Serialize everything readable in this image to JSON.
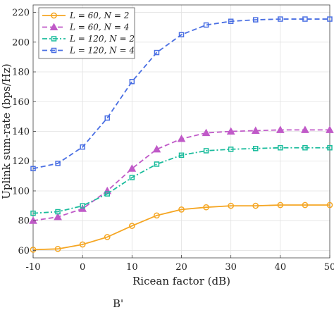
{
  "chart_data": {
    "type": "line",
    "xlabel": "Ricean factor (dB)",
    "ylabel": "Uplink sum-rate (bps/Hz)",
    "xlim": [
      -10,
      50
    ],
    "ylim": [
      55,
      225
    ],
    "xticks": [
      -10,
      0,
      10,
      20,
      30,
      40,
      50
    ],
    "yticks": [
      60,
      80,
      100,
      120,
      140,
      160,
      180,
      200,
      220
    ],
    "grid": true,
    "legend_position": "top-left",
    "x": [
      -10,
      -5,
      0,
      5,
      10,
      15,
      20,
      25,
      30,
      35,
      40,
      45,
      50
    ],
    "series": [
      {
        "name": "L = 60, N = 2",
        "color": "#f5a623",
        "marker": "circle",
        "linestyle": "solid",
        "values": [
          60.5,
          61,
          64,
          69,
          76.5,
          83.5,
          87.5,
          89,
          90,
          90,
          90.5,
          90.5,
          90.5
        ]
      },
      {
        "name": "L = 60, N = 4",
        "color": "#c05ac8",
        "marker": "triangle",
        "linestyle": "dashed",
        "values": [
          80,
          82.5,
          88,
          100,
          115,
          128,
          135,
          139,
          140,
          140.5,
          141,
          141,
          141
        ]
      },
      {
        "name": "L = 120, N = 2",
        "color": "#1abc9c",
        "marker": "square",
        "linestyle": "dashdot",
        "values": [
          85,
          86,
          90,
          98,
          109,
          118,
          124,
          127,
          128,
          128.5,
          129,
          129,
          129
        ]
      },
      {
        "name": "L = 120, N = 4",
        "color": "#4a6fe3",
        "marker": "square",
        "linestyle": "dashed",
        "values": [
          115,
          118.5,
          129.5,
          149,
          173.5,
          193,
          205,
          211.5,
          214,
          215,
          215.5,
          215.5,
          215.5
        ]
      }
    ]
  },
  "caption_fragment": "B'"
}
